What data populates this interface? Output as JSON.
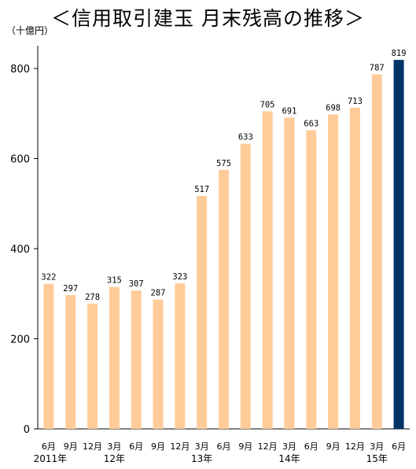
{
  "title": "＜信用取引建玉 月末残高の推移＞",
  "unit": "（十億円）",
  "colors": {
    "bar": "#FFCC99",
    "highlight": "#003366",
    "axis": "#000000"
  },
  "chart_data": {
    "type": "bar",
    "title": "＜信用取引建玉 月末残高の推移＞",
    "ylabel": "（十億円）",
    "xlabel": "",
    "ylim": [
      0,
      850
    ],
    "yticks": [
      0,
      200,
      400,
      600,
      800
    ],
    "grid": false,
    "categories": [
      "6月",
      "9月",
      "12月",
      "3月",
      "6月",
      "9月",
      "12月",
      "3月",
      "6月",
      "9月",
      "12月",
      "3月",
      "6月",
      "9月",
      "12月",
      "3月",
      "6月"
    ],
    "values": [
      322,
      297,
      278,
      315,
      307,
      287,
      323,
      517,
      575,
      633,
      705,
      691,
      663,
      698,
      713,
      787,
      819
    ],
    "highlight_index": 16,
    "year_labels": [
      {
        "label": "2011年",
        "index": 0
      },
      {
        "label": "12年",
        "index": 3
      },
      {
        "label": "13年",
        "index": 7
      },
      {
        "label": "14年",
        "index": 11
      },
      {
        "label": "15年",
        "index": 15
      }
    ]
  }
}
